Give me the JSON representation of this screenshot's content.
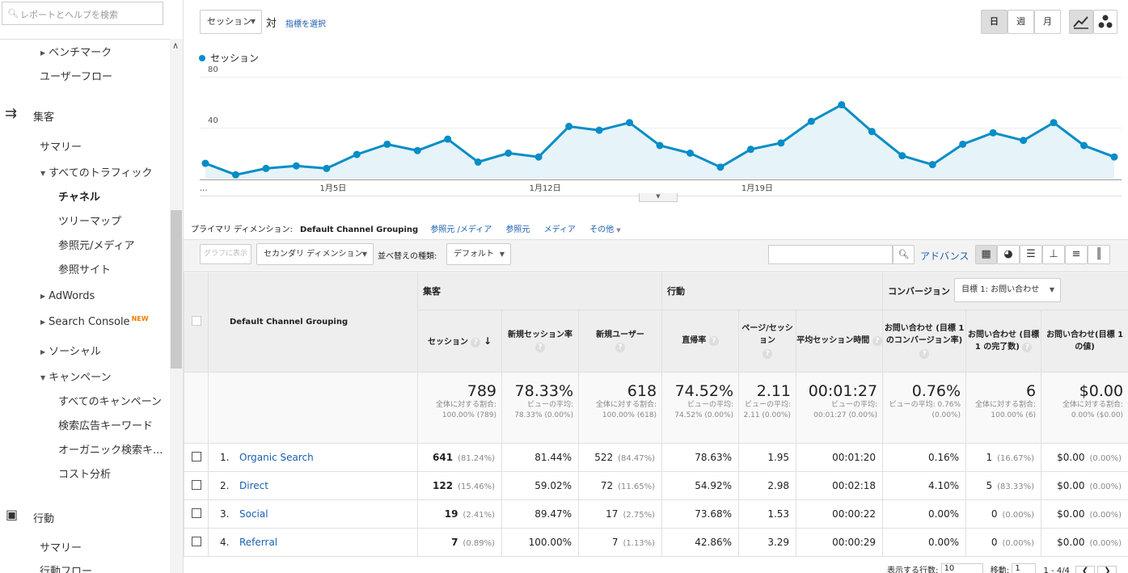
{
  "sidebar": {
    "search_placeholder": "レポートとヘルプを検索",
    "items": [
      {
        "label": "ベンチマーク"
      },
      {
        "label": "ユーザーフロー"
      },
      {
        "label": "集客"
      },
      {
        "label": "サマリー"
      },
      {
        "label": "すべてのトラフィック"
      },
      {
        "label": "チャネル"
      },
      {
        "label": "ツリーマップ"
      },
      {
        "label": "参照元/メディア"
      },
      {
        "label": "参照サイト"
      },
      {
        "label": "AdWords"
      },
      {
        "label": "Search Console",
        "badge": "NEW"
      },
      {
        "label": "ソーシャル"
      },
      {
        "label": "キャンペーン"
      },
      {
        "label": "すべてのキャンペーン"
      },
      {
        "label": "検索広告キーワード"
      },
      {
        "label": "オーガニック検索キ..."
      },
      {
        "label": "コスト分析"
      },
      {
        "label": "行動"
      },
      {
        "label": "サマリー"
      },
      {
        "label": "行動フロー"
      }
    ]
  },
  "toolbar": {
    "metric_select": "セッション",
    "vs_label": "対",
    "choose_metric": "指標を選択",
    "period_buttons": [
      "日",
      "週",
      "月"
    ],
    "active_period": "日"
  },
  "chart_data": {
    "type": "area",
    "series": [
      {
        "name": "セッション",
        "values": [
          12,
          3,
          8,
          10,
          8,
          19,
          27,
          22,
          31,
          13,
          20,
          17,
          41,
          38,
          44,
          26,
          20,
          9,
          23,
          28,
          45,
          58,
          37,
          18,
          11,
          27,
          36,
          30,
          44,
          26,
          17
        ]
      }
    ],
    "x_tick_labels": [
      "1月5日",
      "1月12日",
      "1月19日"
    ],
    "x_tick_indices": [
      4,
      11,
      18
    ],
    "y_ticks": [
      80,
      40
    ],
    "ylim": [
      0,
      80
    ],
    "color": "#058dc7",
    "fill": "#e6f3f9",
    "x_start_label": "..."
  },
  "dimension_bar": {
    "label": "プライマリ ディメンション:",
    "active": "Default Channel Grouping",
    "options": [
      "参照元 /メディア",
      "参照元",
      "メディア",
      "その他"
    ]
  },
  "controls": {
    "plot_rows": "グラフに表示",
    "secondary_dim": "セカンダリ ディメンション",
    "sort_label": "並べ替えの種類:",
    "sort_value": "デフォルト",
    "search_value": "",
    "advanced": "アドバンス"
  },
  "table": {
    "dim_header": "Default Channel Grouping",
    "groups": {
      "acquisition": "集客",
      "behavior": "行動",
      "conversion": "コンバージョン",
      "goal_select": "目標 1: お問い合わせ"
    },
    "columns": [
      "セッション",
      "新規セッション率",
      "新規ユーザー",
      "直帰率",
      "ページ/セッション",
      "平均セッション時間",
      "お問い合わせ (目標 1 のコンバージョン率)",
      "お問い合わせ (目標 1 の完了数)",
      "お問い合わせ(目標 1 の値)"
    ],
    "totals": [
      {
        "value": "789",
        "sub": "全体に対する割合: 100.00% (789)"
      },
      {
        "value": "78.33%",
        "sub": "ビューの平均: 78.33% (0.00%)"
      },
      {
        "value": "618",
        "sub": "全体に対する割合: 100.00% (618)"
      },
      {
        "value": "74.52%",
        "sub": "ビューの平均: 74.52% (0.00%)"
      },
      {
        "value": "2.11",
        "sub": "ビューの平均: 2.11 (0.00%)"
      },
      {
        "value": "00:01:27",
        "sub": "ビューの平均: 00:01:27 (0.00%)"
      },
      {
        "value": "0.76%",
        "sub": "ビューの平均: 0.76% (0.00%)"
      },
      {
        "value": "6",
        "sub": "全体に対する割合: 100.00% (6)"
      },
      {
        "value": "$0.00",
        "sub": "全体に対する割合: 0.00% ($0.00)"
      }
    ],
    "rows": [
      {
        "num": "1.",
        "name": "Organic Search",
        "sessions": "641",
        "sessions_pct": "(81.24%)",
        "new_rate": "81.44%",
        "new_users": "522",
        "new_users_pct": "(84.47%)",
        "bounce": "78.63%",
        "pages": "1.95",
        "duration": "00:01:20",
        "conv_rate": "0.16%",
        "completions": "1",
        "completions_pct": "(16.67%)",
        "value": "$0.00",
        "value_pct": "(0.00%)"
      },
      {
        "num": "2.",
        "name": "Direct",
        "sessions": "122",
        "sessions_pct": "(15.46%)",
        "new_rate": "59.02%",
        "new_users": "72",
        "new_users_pct": "(11.65%)",
        "bounce": "54.92%",
        "pages": "2.98",
        "duration": "00:02:18",
        "conv_rate": "4.10%",
        "completions": "5",
        "completions_pct": "(83.33%)",
        "value": "$0.00",
        "value_pct": "(0.00%)"
      },
      {
        "num": "3.",
        "name": "Social",
        "sessions": "19",
        "sessions_pct": "(2.41%)",
        "new_rate": "89.47%",
        "new_users": "17",
        "new_users_pct": "(2.75%)",
        "bounce": "73.68%",
        "pages": "1.53",
        "duration": "00:00:22",
        "conv_rate": "0.00%",
        "completions": "0",
        "completions_pct": "(0.00%)",
        "value": "$0.00",
        "value_pct": "(0.00%)"
      },
      {
        "num": "4.",
        "name": "Referral",
        "sessions": "7",
        "sessions_pct": "(0.89%)",
        "new_rate": "100.00%",
        "new_users": "7",
        "new_users_pct": "(1.13%)",
        "bounce": "42.86%",
        "pages": "3.29",
        "duration": "00:00:29",
        "conv_rate": "0.00%",
        "completions": "0",
        "completions_pct": "(0.00%)",
        "value": "$0.00",
        "value_pct": "(0.00%)"
      }
    ]
  },
  "pager": {
    "rows_label": "表示する行数:",
    "rows_value": "10",
    "goto_label": "移動:",
    "goto_value": "1",
    "range": "1 - 4/4"
  }
}
